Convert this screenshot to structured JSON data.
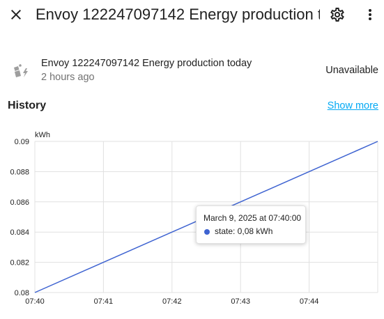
{
  "header": {
    "title": "Envoy 122247097142 Energy production today",
    "close_icon": "close-icon",
    "settings_icon": "gear-icon",
    "menu_icon": "more-vertical-icon"
  },
  "entity": {
    "icon": "solar-power-variant-icon",
    "name": "Envoy 122247097142 Energy production today",
    "last_changed": "2 hours ago",
    "state": "Unavailable"
  },
  "history": {
    "title": "History",
    "show_more": "Show more"
  },
  "colors": {
    "accent": "#03a9f4",
    "series_line": "#3e63d1",
    "grid": "#e0e0e0",
    "text_secondary": "#727272"
  },
  "chart_data": {
    "type": "line",
    "unit_label": "kWh",
    "x_ticks": [
      "07:40",
      "07:41",
      "07:42",
      "07:43",
      "07:44"
    ],
    "y_ticks": [
      "0.08",
      "0.082",
      "0.084",
      "0.086",
      "0.088",
      "0.09"
    ],
    "ylim": [
      0.08,
      0.09
    ],
    "xlim_minutes": [
      0,
      5
    ],
    "series": [
      {
        "points": [
          {
            "x_minutes": 0,
            "y": 0.08
          },
          {
            "x_minutes": 5,
            "y": 0.09
          }
        ]
      }
    ],
    "grid": true,
    "tooltip": {
      "title": "March 9, 2025 at 07:40:00",
      "value_text": "state: 0,08 kWh"
    }
  }
}
